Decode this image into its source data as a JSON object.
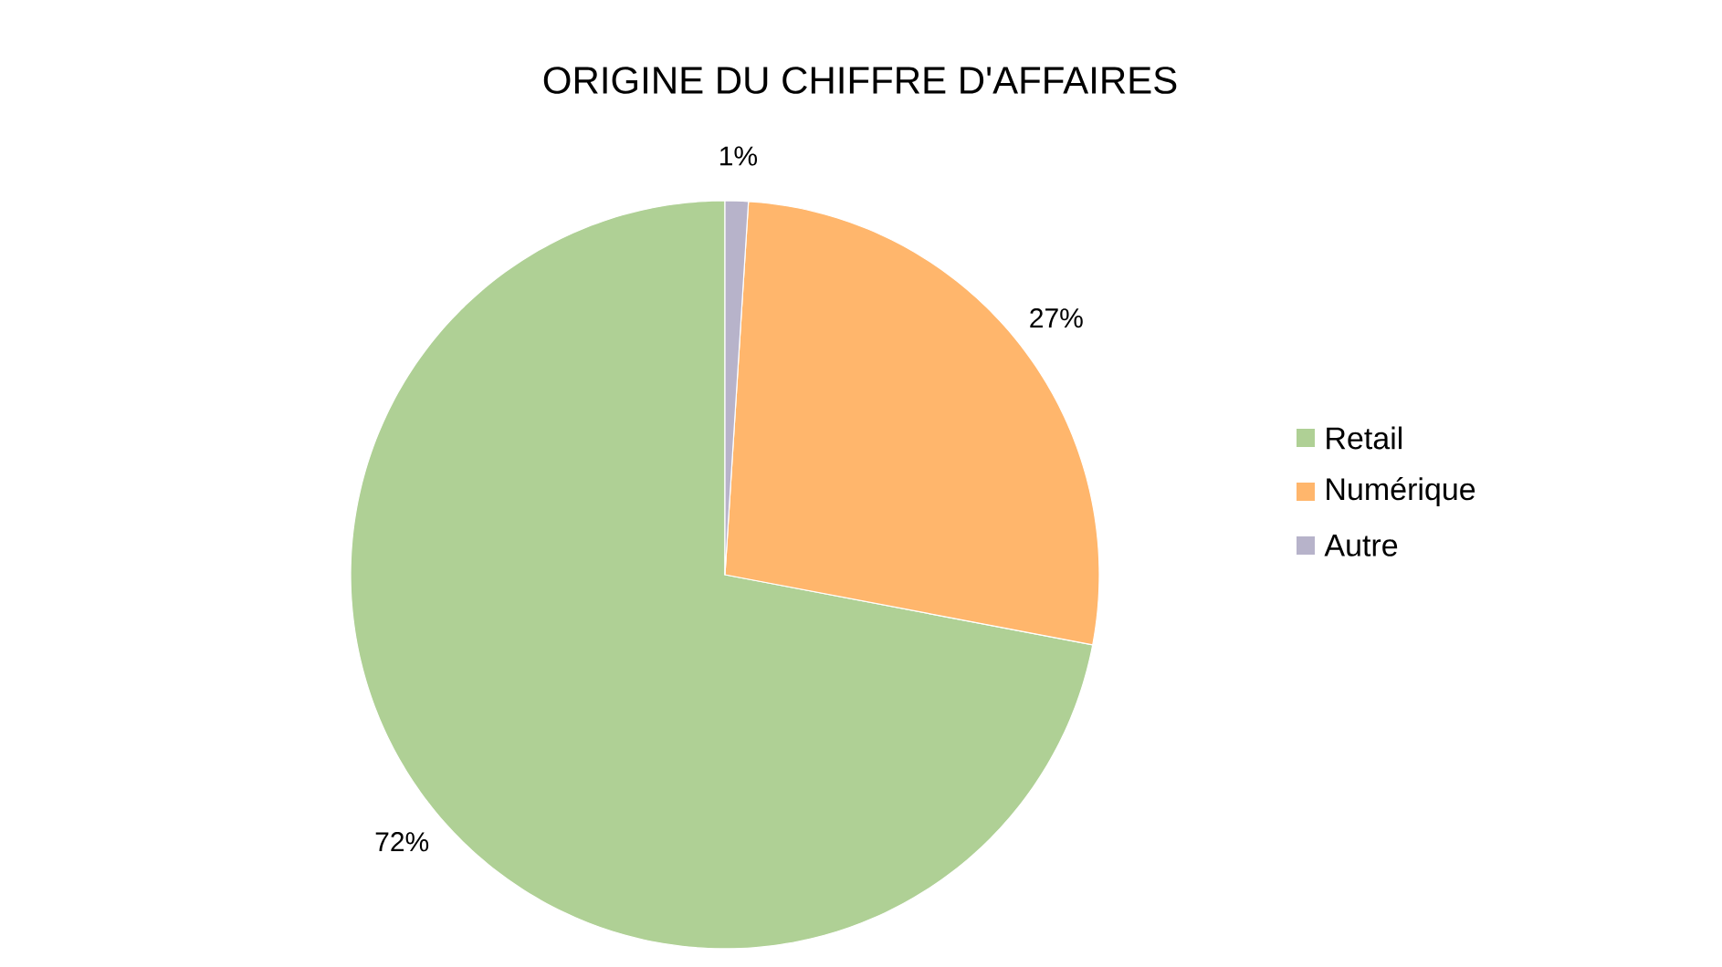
{
  "chart_data": {
    "type": "pie",
    "title": "ORIGINE DU CHIFFRE D'AFFAIRES",
    "categories": [
      "Retail",
      "Numérique",
      "Autre"
    ],
    "values": [
      72,
      27,
      1
    ],
    "value_labels": [
      "72%",
      "27%",
      "1%"
    ],
    "colors": [
      "#afd095",
      "#ffb66c",
      "#b7b3ca"
    ],
    "legend": "right"
  }
}
